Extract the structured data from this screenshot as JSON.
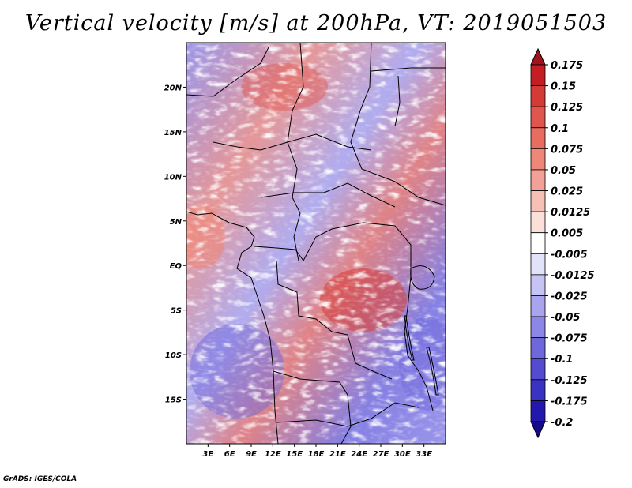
{
  "title": "Vertical velocity [m/s] at 200hPa, VT: 2019051503",
  "credit": "GrADS: IGES/COLA",
  "chart_data": {
    "type": "heatmap",
    "title": "Vertical velocity [m/s] at 200hPa, VT: 2019051503",
    "variable": "Vertical velocity",
    "units": "m/s",
    "level": "200hPa",
    "valid_time": "2019051503",
    "lon_range": [
      0,
      36
    ],
    "lat_range": [
      -20,
      25
    ],
    "x_ticks": [
      {
        "value": 3,
        "label": "3E"
      },
      {
        "value": 6,
        "label": "6E"
      },
      {
        "value": 9,
        "label": "9E"
      },
      {
        "value": 12,
        "label": "12E"
      },
      {
        "value": 15,
        "label": "15E"
      },
      {
        "value": 18,
        "label": "18E"
      },
      {
        "value": 21,
        "label": "21E"
      },
      {
        "value": 24,
        "label": "24E"
      },
      {
        "value": 27,
        "label": "27E"
      },
      {
        "value": 30,
        "label": "30E"
      },
      {
        "value": 33,
        "label": "33E"
      }
    ],
    "y_ticks": [
      {
        "value": 20,
        "label": "20N"
      },
      {
        "value": 15,
        "label": "15N"
      },
      {
        "value": 10,
        "label": "10N"
      },
      {
        "value": 5,
        "label": "5N"
      },
      {
        "value": 0,
        "label": "EQ"
      },
      {
        "value": -5,
        "label": "5S"
      },
      {
        "value": -10,
        "label": "10S"
      },
      {
        "value": -15,
        "label": "15S"
      }
    ],
    "colorbar": {
      "levels": [
        "0.175",
        "0.15",
        "0.125",
        "0.1",
        "0.075",
        "0.05",
        "0.025",
        "0.0125",
        "0.005",
        "-0.005",
        "-0.0125",
        "-0.025",
        "-0.05",
        "-0.075",
        "-0.1",
        "-0.125",
        "-0.175",
        "-0.2"
      ],
      "colors": [
        "#a0141e",
        "#c41e24",
        "#d43a36",
        "#e0554d",
        "#e86c60",
        "#ef8778",
        "#f3a196",
        "#f7c0b6",
        "#fbe0da",
        "#ffffff",
        "#e2e2fb",
        "#c6c4f5",
        "#a8a4ee",
        "#8c86e6",
        "#6f68dc",
        "#544cd0",
        "#3a32c2",
        "#2418ac",
        "#150a8e"
      ],
      "extend": "both"
    }
  }
}
